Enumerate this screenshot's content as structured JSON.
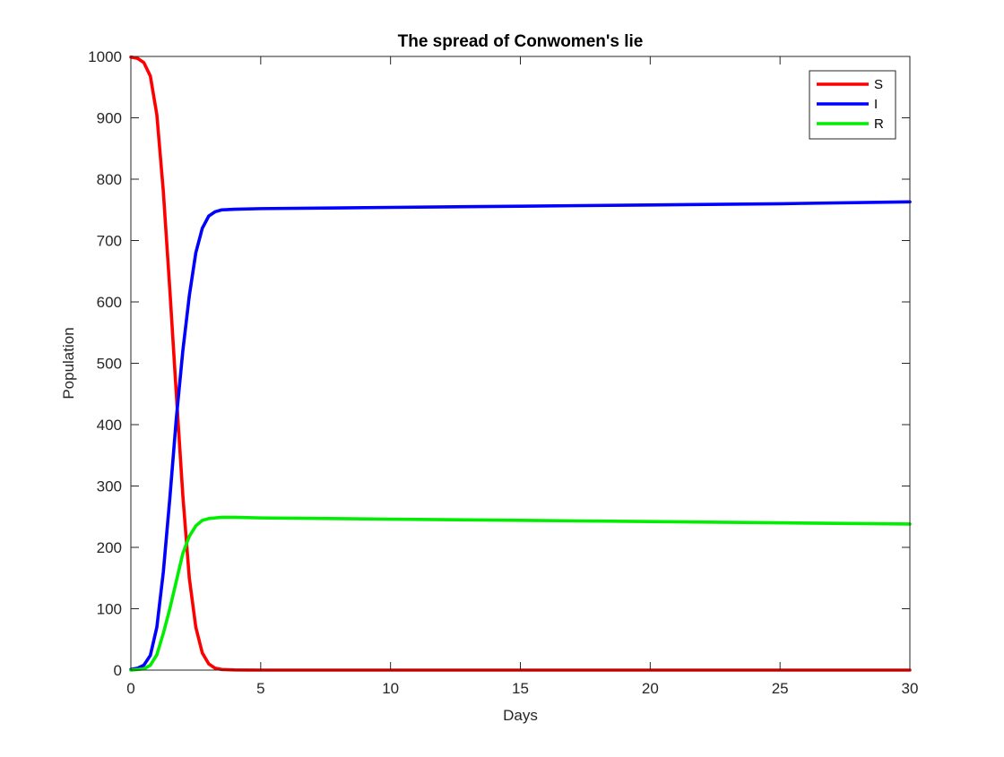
{
  "chart_data": {
    "type": "line",
    "title": "The spread of Conwomen's lie",
    "xlabel": "Days",
    "ylabel": "Population",
    "xlim": [
      0,
      30
    ],
    "ylim": [
      0,
      1000
    ],
    "xticks": [
      0,
      5,
      10,
      15,
      20,
      25,
      30
    ],
    "yticks": [
      0,
      100,
      200,
      300,
      400,
      500,
      600,
      700,
      800,
      900,
      1000
    ],
    "grid": false,
    "legend_position": "top-right",
    "series": [
      {
        "name": "S",
        "color": "#ff0000",
        "x": [
          0,
          0.25,
          0.5,
          0.75,
          1.0,
          1.25,
          1.5,
          1.75,
          2.0,
          2.25,
          2.5,
          2.75,
          3.0,
          3.25,
          3.5,
          4.0,
          4.5,
          5,
          10,
          15,
          20,
          25,
          30
        ],
        "y": [
          999,
          997,
          990,
          968,
          905,
          780,
          620,
          450,
          285,
          150,
          70,
          28,
          10,
          3,
          1,
          0.3,
          0.1,
          0,
          0,
          0,
          0,
          0,
          0
        ]
      },
      {
        "name": "I",
        "color": "#0000ff",
        "x": [
          0,
          0.25,
          0.5,
          0.75,
          1.0,
          1.25,
          1.5,
          1.75,
          2.0,
          2.25,
          2.5,
          2.75,
          3.0,
          3.25,
          3.5,
          4.0,
          5,
          10,
          15,
          20,
          25,
          30
        ],
        "y": [
          1,
          3,
          8,
          24,
          70,
          160,
          280,
          410,
          520,
          610,
          680,
          720,
          740,
          747,
          750,
          751,
          752,
          754,
          756,
          758,
          760,
          763
        ]
      },
      {
        "name": "R",
        "color": "#00ee00",
        "x": [
          0,
          0.25,
          0.5,
          0.75,
          1.0,
          1.25,
          1.5,
          1.75,
          2.0,
          2.25,
          2.5,
          2.75,
          3.0,
          3.25,
          3.5,
          4.0,
          5,
          10,
          15,
          20,
          25,
          30
        ],
        "y": [
          0,
          1,
          2,
          8,
          25,
          60,
          100,
          145,
          190,
          218,
          235,
          244,
          247,
          248,
          249,
          249,
          248,
          246,
          244,
          242,
          240,
          238
        ]
      }
    ]
  }
}
